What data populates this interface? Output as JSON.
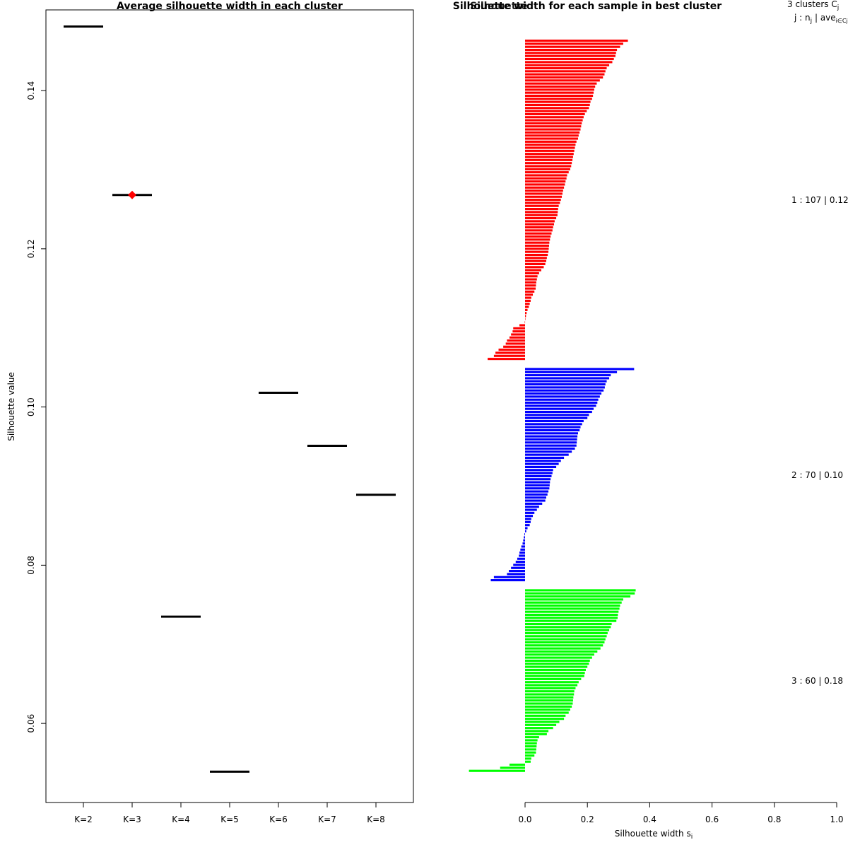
{
  "chart_data": [
    {
      "type": "scatter",
      "title": "Average silhouette width in each cluster",
      "ylabel": "Silhouette value",
      "xlabel": "",
      "ylim": [
        0.05,
        0.1502
      ],
      "yticks": [
        0.06,
        0.08,
        0.1,
        0.12,
        0.14
      ],
      "ytick_labels": [
        "0.06",
        "0.08",
        "0.10",
        "0.12",
        "0.14"
      ],
      "categories": [
        "K=2",
        "K=3",
        "K=4",
        "K=5",
        "K=6",
        "K=7",
        "K=8"
      ],
      "values": [
        0.1481,
        0.1268,
        0.0735,
        0.0539,
        0.1018,
        0.0951,
        0.0889
      ],
      "best_index": 1,
      "best_marker_color": "#ff0000",
      "line_color": "#000000"
    },
    {
      "type": "bar",
      "orientation": "horizontal",
      "title": "Silhouette width for each sample in best cluster",
      "overlapped_title_text": "Silhouette",
      "xlabel": "Silhouette width s",
      "xlabel_subscript": "i",
      "xlim": [
        -0.18,
        1.0
      ],
      "xticks": [
        0.0,
        0.2,
        0.4,
        0.6,
        0.8,
        1.0
      ],
      "xtick_labels": [
        "0.0",
        "0.2",
        "0.4",
        "0.6",
        "0.8",
        "1.0"
      ],
      "legend_header": {
        "line1": "3  clusters  C",
        "line1_sub": "j",
        "line2_a": "j :  n",
        "line2_sub": "j",
        "line2_b": " | ave",
        "line2_sub2": "i∈Cj",
        "line2_c": "  s"
      },
      "series": [
        {
          "name": "1",
          "color": "#ff0000",
          "n": 107,
          "label": "1 :   107  |  0.12",
          "max": 0.33,
          "min_positive": 0.003,
          "n_negative": 13,
          "min_negative": -0.12,
          "values": [
            0.33,
            0.315,
            0.305,
            0.295,
            0.292,
            0.29,
            0.285,
            0.28,
            0.27,
            0.262,
            0.258,
            0.255,
            0.25,
            0.24,
            0.23,
            0.225,
            0.222,
            0.22,
            0.218,
            0.215,
            0.21,
            0.208,
            0.205,
            0.198,
            0.192,
            0.188,
            0.185,
            0.182,
            0.18,
            0.178,
            0.175,
            0.172,
            0.17,
            0.165,
            0.162,
            0.16,
            0.158,
            0.156,
            0.154,
            0.152,
            0.15,
            0.148,
            0.145,
            0.14,
            0.135,
            0.133,
            0.13,
            0.128,
            0.125,
            0.122,
            0.12,
            0.118,
            0.115,
            0.112,
            0.108,
            0.106,
            0.105,
            0.104,
            0.1,
            0.095,
            0.093,
            0.09,
            0.088,
            0.085,
            0.082,
            0.08,
            0.078,
            0.077,
            0.076,
            0.075,
            0.073,
            0.07,
            0.068,
            0.065,
            0.06,
            0.052,
            0.045,
            0.04,
            0.038,
            0.036,
            0.035,
            0.034,
            0.03,
            0.025,
            0.02,
            0.018,
            0.015,
            0.012,
            0.008,
            0.005,
            0.003,
            0.001,
            -0.001,
            -0.018,
            -0.038,
            -0.04,
            -0.045,
            -0.05,
            -0.058,
            -0.062,
            -0.07,
            -0.085,
            -0.095,
            -0.1,
            -0.12
          ]
        },
        {
          "name": "2",
          "color": "#0000ff",
          "n": 70,
          "label": "2 :   70  |  0.10",
          "max": 0.35,
          "n_negative": 16,
          "min_negative": -0.11,
          "values": [
            0.35,
            0.295,
            0.275,
            0.27,
            0.262,
            0.258,
            0.256,
            0.252,
            0.245,
            0.24,
            0.235,
            0.232,
            0.228,
            0.22,
            0.215,
            0.205,
            0.2,
            0.188,
            0.183,
            0.178,
            0.175,
            0.17,
            0.168,
            0.167,
            0.166,
            0.165,
            0.16,
            0.15,
            0.14,
            0.125,
            0.115,
            0.108,
            0.1,
            0.09,
            0.088,
            0.085,
            0.082,
            0.08,
            0.079,
            0.078,
            0.075,
            0.072,
            0.068,
            0.065,
            0.055,
            0.045,
            0.038,
            0.03,
            0.025,
            0.02,
            0.018,
            0.015,
            0.008,
            0.004,
            -0.002,
            -0.004,
            -0.006,
            -0.008,
            -0.012,
            -0.015,
            -0.018,
            -0.02,
            -0.025,
            -0.03,
            -0.038,
            -0.045,
            -0.052,
            -0.058,
            -0.1,
            -0.11
          ]
        },
        {
          "name": "3",
          "color": "#00ff00",
          "n": 60,
          "label": "3 :   60  |  0.18",
          "max": 0.355,
          "n_negative": 3,
          "min_negative": -0.18,
          "values": [
            0.355,
            0.352,
            0.338,
            0.315,
            0.31,
            0.305,
            0.303,
            0.3,
            0.298,
            0.297,
            0.293,
            0.278,
            0.275,
            0.27,
            0.265,
            0.262,
            0.258,
            0.255,
            0.25,
            0.242,
            0.232,
            0.222,
            0.215,
            0.208,
            0.205,
            0.2,
            0.195,
            0.192,
            0.19,
            0.18,
            0.172,
            0.168,
            0.162,
            0.158,
            0.157,
            0.155,
            0.154,
            0.153,
            0.15,
            0.145,
            0.14,
            0.13,
            0.125,
            0.11,
            0.1,
            0.09,
            0.075,
            0.07,
            0.045,
            0.04,
            0.038,
            0.037,
            0.036,
            0.035,
            0.03,
            0.02,
            0.018,
            -0.05,
            -0.08,
            -0.18
          ]
        }
      ]
    }
  ]
}
